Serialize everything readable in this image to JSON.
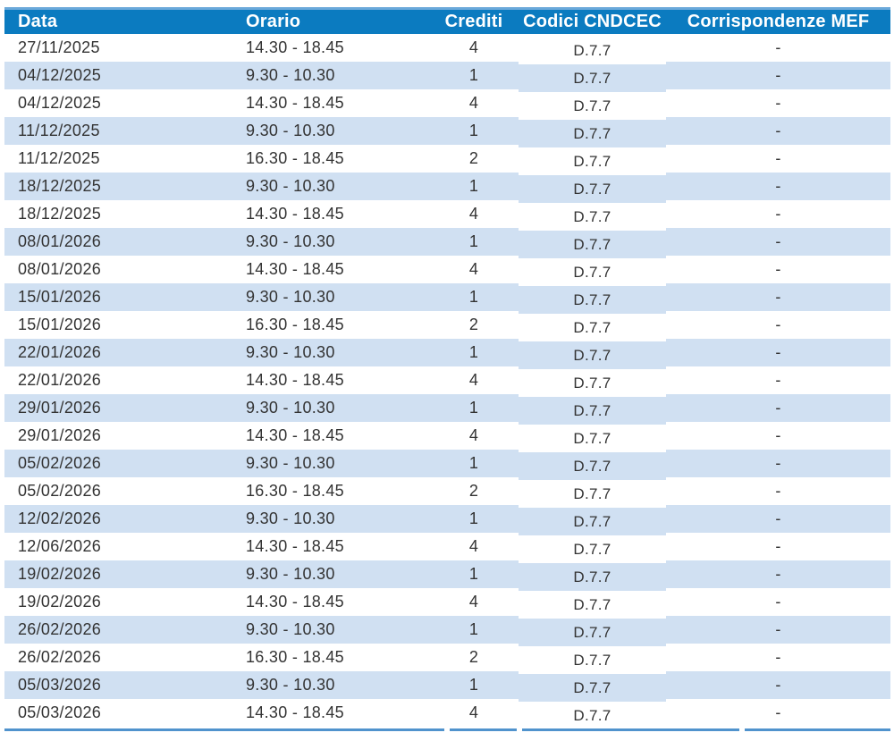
{
  "table": {
    "columns": [
      {
        "key": "data",
        "label": "Data"
      },
      {
        "key": "orario",
        "label": "Orario"
      },
      {
        "key": "crediti",
        "label": "Crediti"
      },
      {
        "key": "codici",
        "label": "Codici CNDCEC"
      },
      {
        "key": "mef",
        "label": "Corrispondenze MEF"
      }
    ],
    "rows": [
      {
        "data": "27/11/2025",
        "orario": "14.30 - 18.45",
        "crediti": "4",
        "codici": "D.7.7",
        "mef": "-"
      },
      {
        "data": "04/12/2025",
        "orario": "9.30 - 10.30",
        "crediti": "1",
        "codici": "D.7.7",
        "mef": "-"
      },
      {
        "data": "04/12/2025",
        "orario": "14.30 - 18.45",
        "crediti": "4",
        "codici": "D.7.7",
        "mef": "-"
      },
      {
        "data": "11/12/2025",
        "orario": "9.30 - 10.30",
        "crediti": "1",
        "codici": "D.7.7",
        "mef": "-"
      },
      {
        "data": "11/12/2025",
        "orario": "16.30 - 18.45",
        "crediti": "2",
        "codici": "D.7.7",
        "mef": "-"
      },
      {
        "data": "18/12/2025",
        "orario": "9.30 - 10.30",
        "crediti": "1",
        "codici": "D.7.7",
        "mef": "-"
      },
      {
        "data": "18/12/2025",
        "orario": "14.30 - 18.45",
        "crediti": "4",
        "codici": "D.7.7",
        "mef": "-"
      },
      {
        "data": "08/01/2026",
        "orario": "9.30 - 10.30",
        "crediti": "1",
        "codici": "D.7.7",
        "mef": "-"
      },
      {
        "data": "08/01/2026",
        "orario": "14.30 - 18.45",
        "crediti": "4",
        "codici": "D.7.7",
        "mef": "-"
      },
      {
        "data": "15/01/2026",
        "orario": "9.30 - 10.30",
        "crediti": "1",
        "codici": "D.7.7",
        "mef": "-"
      },
      {
        "data": "15/01/2026",
        "orario": "16.30 - 18.45",
        "crediti": "2",
        "codici": "D.7.7",
        "mef": "-"
      },
      {
        "data": "22/01/2026",
        "orario": "9.30 - 10.30",
        "crediti": "1",
        "codici": "D.7.7",
        "mef": "-"
      },
      {
        "data": "22/01/2026",
        "orario": "14.30 - 18.45",
        "crediti": "4",
        "codici": "D.7.7",
        "mef": "-"
      },
      {
        "data": "29/01/2026",
        "orario": "9.30 - 10.30",
        "crediti": "1",
        "codici": "D.7.7",
        "mef": "-"
      },
      {
        "data": "29/01/2026",
        "orario": "14.30 - 18.45",
        "crediti": "4",
        "codici": "D.7.7",
        "mef": "-"
      },
      {
        "data": "05/02/2026",
        "orario": "9.30 - 10.30",
        "crediti": "1",
        "codici": "D.7.7",
        "mef": "-"
      },
      {
        "data": "05/02/2026",
        "orario": "16.30 - 18.45",
        "crediti": "2",
        "codici": "D.7.7",
        "mef": "-"
      },
      {
        "data": "12/02/2026",
        "orario": "9.30 - 10.30",
        "crediti": "1",
        "codici": "D.7.7",
        "mef": "-"
      },
      {
        "data": "12/06/2026",
        "orario": "14.30 - 18.45",
        "crediti": "4",
        "codici": "D.7.7",
        "mef": "-"
      },
      {
        "data": "19/02/2026",
        "orario": "9.30 - 10.30",
        "crediti": "1",
        "codici": "D.7.7",
        "mef": "-"
      },
      {
        "data": "19/02/2026",
        "orario": "14.30 - 18.45",
        "crediti": "4",
        "codici": "D.7.7",
        "mef": "-"
      },
      {
        "data": "26/02/2026",
        "orario": "9.30 - 10.30",
        "crediti": "1",
        "codici": "D.7.7",
        "mef": "-"
      },
      {
        "data": "26/02/2026",
        "orario": "16.30 - 18.45",
        "crediti": "2",
        "codici": "D.7.7",
        "mef": "-"
      },
      {
        "data": "05/03/2026",
        "orario": "9.30 - 10.30",
        "crediti": "1",
        "codici": "D.7.7",
        "mef": "-"
      },
      {
        "data": "05/03/2026",
        "orario": "14.30 - 18.45",
        "crediti": "4",
        "codici": "D.7.7",
        "mef": "-"
      }
    ]
  },
  "colors": {
    "header_bg": "#0b7bc0",
    "header_top_edge": "#6ba9da",
    "header_text": "#ffffff",
    "row_stripe_bg": "#d0e0f2",
    "row_text": "#333333",
    "bottom_rule": "#5093cd"
  }
}
